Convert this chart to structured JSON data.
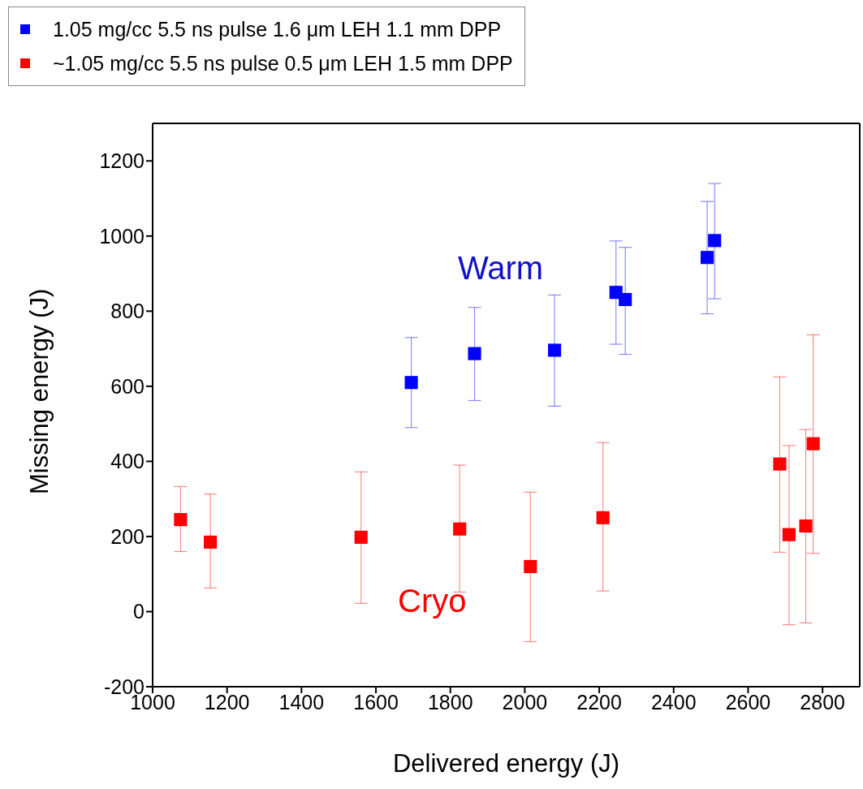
{
  "chart_data": {
    "type": "scatter",
    "xlabel": "Delivered energy (J)",
    "ylabel": "Missing energy (J)",
    "xlim": [
      1000,
      2900
    ],
    "xticks": [
      1000,
      1200,
      1400,
      1600,
      1800,
      2000,
      2200,
      2400,
      2600,
      2800
    ],
    "ylim": [
      -200,
      1300
    ],
    "yticks": [
      -200,
      0,
      200,
      400,
      600,
      800,
      1000,
      1200
    ],
    "grid": false,
    "legend": "top left",
    "marker": "square",
    "annotations": [
      "Warm",
      "Cryo"
    ],
    "series": [
      {
        "name": "1.05 mg/cc 5.5 ns pulse 1.6 μm LEH 1.1 mm DPP",
        "color": "#0000ff",
        "x": [
          1695,
          1865,
          2080,
          2245,
          2270,
          2490,
          2510
        ],
        "values": [
          610,
          687,
          696,
          850,
          831,
          943,
          988
        ],
        "errors": [
          [
            490,
            730
          ],
          [
            562,
            810
          ],
          [
            547,
            843
          ],
          [
            712,
            987
          ],
          [
            685,
            970
          ],
          [
            793,
            1092
          ],
          [
            833,
            1140
          ]
        ]
      },
      {
        "name": "~1.05 mg/cc 5.5 ns pulse 0.5 μm LEH 1.5 mm DPP",
        "color": "#ff0000",
        "x": [
          1075,
          1155,
          1560,
          1825,
          2015,
          2210,
          2685,
          2710,
          2755,
          2775
        ],
        "values": [
          245,
          185,
          198,
          220,
          120,
          250,
          393,
          205,
          228,
          447
        ],
        "errors": [
          [
            160,
            333
          ],
          [
            63,
            313
          ],
          [
            22,
            372
          ],
          [
            52,
            390
          ],
          [
            -80,
            318
          ],
          [
            55,
            450
          ],
          [
            158,
            625
          ],
          [
            -35,
            442
          ],
          [
            -30,
            485
          ],
          [
            155,
            737
          ]
        ]
      }
    ]
  }
}
